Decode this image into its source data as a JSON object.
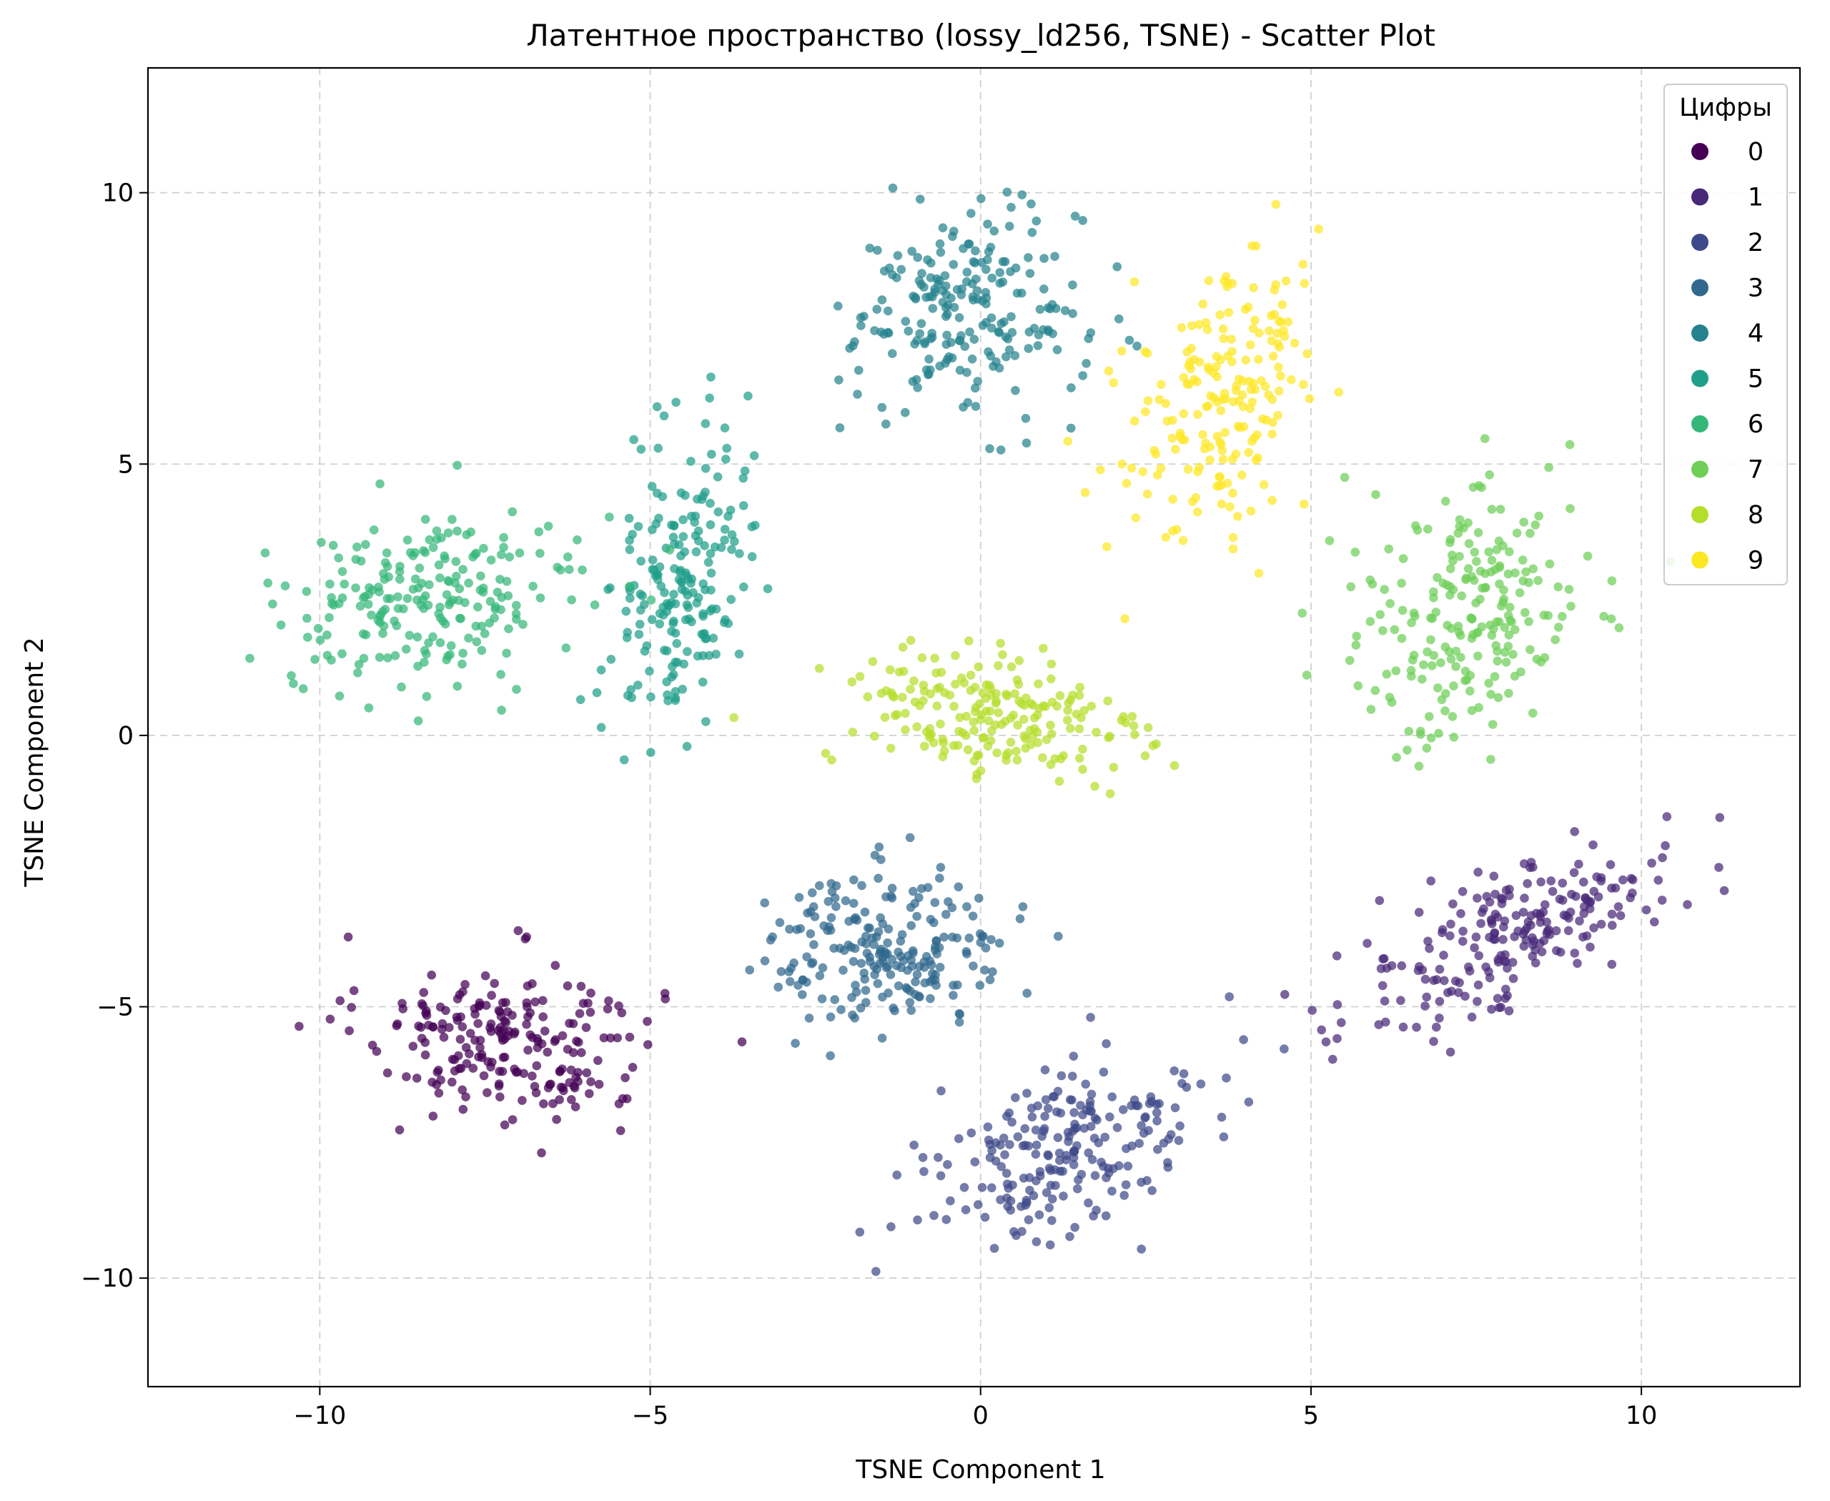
{
  "chart_data": {
    "type": "scatter",
    "title": "Латентное пространство (lossy_ld256, TSNE) - Scatter Plot",
    "xlabel": "TSNE Component 1",
    "ylabel": "TSNE Component 2",
    "xlim": [
      -12.6,
      12.4
    ],
    "ylim": [
      -12.0,
      12.3
    ],
    "xticks": [
      {
        "value": -10,
        "label": "−10"
      },
      {
        "value": -5,
        "label": "−5"
      },
      {
        "value": 0,
        "label": "0"
      },
      {
        "value": 5,
        "label": "5"
      },
      {
        "value": 10,
        "label": "10"
      }
    ],
    "yticks": [
      {
        "value": 10,
        "label": "10"
      },
      {
        "value": 5,
        "label": "5"
      },
      {
        "value": 0,
        "label": "0"
      },
      {
        "value": -5,
        "label": "−5"
      },
      {
        "value": -10,
        "label": "−10"
      }
    ],
    "grid": true,
    "legend": {
      "title": "Цифры",
      "placement": "top-right"
    },
    "series": [
      {
        "name": "0",
        "color": "#440154",
        "cluster": {
          "cx": -7.2,
          "cy": -5.6,
          "sx": 2.0,
          "sy": 1.35,
          "rot": -10,
          "n": 220
        }
      },
      {
        "name": "1",
        "color": "#482878",
        "cluster": {
          "cx": 8.2,
          "cy": -3.6,
          "sx": 2.6,
          "sy": 1.05,
          "rot": 32,
          "n": 220
        }
      },
      {
        "name": "2",
        "color": "#3e4989",
        "cluster": {
          "cx": 1.3,
          "cy": -7.6,
          "sx": 2.3,
          "sy": 1.2,
          "rot": 38,
          "n": 220
        }
      },
      {
        "name": "3",
        "color": "#31688e",
        "cluster": {
          "cx": -1.4,
          "cy": -3.9,
          "sx": 1.65,
          "sy": 1.3,
          "rot": 0,
          "n": 220
        }
      },
      {
        "name": "4",
        "color": "#26828e",
        "cluster": {
          "cx": -0.2,
          "cy": 7.8,
          "sx": 1.6,
          "sy": 1.7,
          "rot": 0,
          "n": 220
        }
      },
      {
        "name": "5",
        "color": "#1f9e89",
        "cluster": {
          "cx": -4.5,
          "cy": 2.9,
          "sx": 0.9,
          "sy": 2.6,
          "rot": -8,
          "n": 200
        }
      },
      {
        "name": "6",
        "color": "#35b779",
        "cluster": {
          "cx": -8.3,
          "cy": 2.5,
          "sx": 2.2,
          "sy": 1.3,
          "rot": 10,
          "n": 220
        }
      },
      {
        "name": "7",
        "color": "#6ece58",
        "cluster": {
          "cx": 7.3,
          "cy": 2.2,
          "sx": 1.6,
          "sy": 2.3,
          "rot": -15,
          "n": 220
        }
      },
      {
        "name": "8",
        "color": "#b5de2b",
        "cluster": {
          "cx": 0.2,
          "cy": 0.3,
          "sx": 2.2,
          "sy": 1.2,
          "rot": -10,
          "n": 200
        }
      },
      {
        "name": "9",
        "color": "#fde725",
        "cluster": {
          "cx": 3.6,
          "cy": 6.2,
          "sx": 1.2,
          "sy": 2.4,
          "rot": -15,
          "n": 200
        }
      }
    ]
  }
}
